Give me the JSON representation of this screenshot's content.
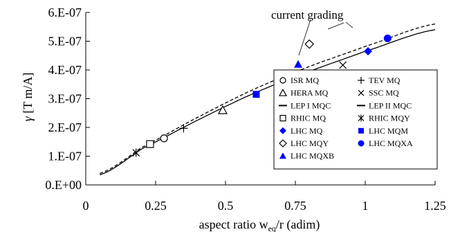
{
  "chart_data": {
    "type": "scatter",
    "xlabel": "aspect ratio w",
    "xlabel_sub": "eq",
    "xlabel_tail": "/r (adim)",
    "ylabel": "γ [T m/A]",
    "xlim": [
      0,
      1.25
    ],
    "ylim": [
      0,
      6e-07
    ],
    "x_ticks": [
      0,
      0.25,
      0.5,
      0.75,
      1,
      1.25
    ],
    "x_tick_labels": [
      "0",
      "0.25",
      "0.5",
      "0.75",
      "1",
      "1.25"
    ],
    "y_ticks": [
      0,
      1e-07,
      2e-07,
      3e-07,
      4e-07,
      5e-07,
      6e-07
    ],
    "y_tick_labels": [
      "0.E+00",
      "1.E-07",
      "2.E-07",
      "3.E-07",
      "4.E-07",
      "5.E-07",
      "6.E-07"
    ],
    "grid": false,
    "legend_position": "bottom-right",
    "annotation": "current grading",
    "curves": [
      {
        "style": "solid",
        "x": [
          0.05,
          0.2,
          0.4,
          0.6,
          0.8,
          1.0,
          1.25
        ],
        "y": [
          3.5e-08,
          1.25e-07,
          2.25e-07,
          3.18e-07,
          3.95e-07,
          4.65e-07,
          5.4e-07
        ]
      },
      {
        "style": "dashed",
        "x": [
          0.05,
          0.2,
          0.4,
          0.6,
          0.8,
          1.0,
          1.25
        ],
        "y": [
          4e-08,
          1.3e-07,
          2.35e-07,
          3.32e-07,
          4.12e-07,
          4.82e-07,
          5.6e-07
        ]
      }
    ],
    "series": [
      {
        "name": "ISR MQ",
        "marker": "circle-open",
        "color": "#000000",
        "x": [
          0.28
        ],
        "y": [
          1.62e-07
        ]
      },
      {
        "name": "TEV MQ",
        "marker": "plus",
        "color": "#000000",
        "x": [
          0.35
        ],
        "y": [
          1.97e-07
        ]
      },
      {
        "name": "HERA MQ",
        "marker": "triangle-open",
        "color": "#000000",
        "x": [
          0.49
        ],
        "y": [
          2.6e-07
        ]
      },
      {
        "name": "SSC MQ",
        "marker": "x",
        "color": "#000000",
        "x": [
          0.92
        ],
        "y": [
          4.17e-07
        ]
      },
      {
        "name": "LEP I MQC",
        "marker": "dash",
        "color": "#000000",
        "x": [],
        "y": []
      },
      {
        "name": "LEP II MQC",
        "marker": "dash",
        "color": "#000000",
        "x": [],
        "y": []
      },
      {
        "name": "RHIC MQ",
        "marker": "square-open",
        "color": "#000000",
        "x": [
          0.23
        ],
        "y": [
          1.42e-07
        ]
      },
      {
        "name": "RHIC MQY",
        "marker": "asterisk",
        "color": "#000000",
        "x": [
          0.18
        ],
        "y": [
          1.12e-07
        ]
      },
      {
        "name": "LHC MQ",
        "marker": "diamond-filled",
        "color": "#0000ff",
        "x": [
          1.01
        ],
        "y": [
          4.65e-07
        ]
      },
      {
        "name": "LHC MQM",
        "marker": "square-filled",
        "color": "#0000ff",
        "x": [
          0.61
        ],
        "y": [
          3.15e-07
        ]
      },
      {
        "name": "LHC MQY",
        "marker": "diamond-open",
        "color": "#000000",
        "x": [
          0.8
        ],
        "y": [
          4.9e-07
        ]
      },
      {
        "name": "LHC MQXA",
        "marker": "circle-filled",
        "color": "#0000ff",
        "x": [
          1.08
        ],
        "y": [
          5.1e-07
        ]
      },
      {
        "name": "LHC MQXB",
        "marker": "triangle-filled",
        "color": "#0000ff",
        "x": [
          0.76
        ],
        "y": [
          4.2e-07
        ]
      }
    ]
  }
}
